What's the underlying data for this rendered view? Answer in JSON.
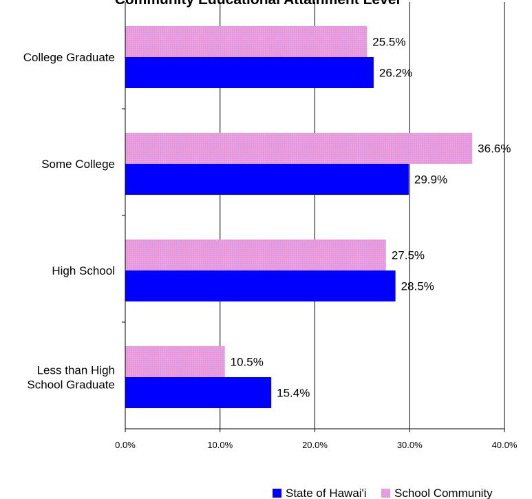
{
  "chart_data": {
    "type": "bar",
    "orientation": "horizontal",
    "title": "Community Educational Attainment Level",
    "categories": [
      "College Graduate",
      "Some College",
      "High School",
      "Less than High School Graduate"
    ],
    "category_lines": [
      [
        "College Graduate"
      ],
      [
        "Some College"
      ],
      [
        "High School"
      ],
      [
        "Less than High",
        "School Graduate"
      ]
    ],
    "series": [
      {
        "name": "School Community",
        "values": [
          25.5,
          36.6,
          27.5,
          10.5
        ],
        "labels": [
          "25.5%",
          "36.6%",
          "27.5%",
          "10.5%"
        ],
        "color": "#cc99ff",
        "pattern_color": "#ff99cc"
      },
      {
        "name": "State of Hawai'i",
        "values": [
          26.2,
          29.9,
          28.5,
          15.4
        ],
        "labels": [
          "26.2%",
          "29.9%",
          "28.5%",
          "15.4%"
        ],
        "color": "#0000ff"
      }
    ],
    "xlim": [
      0,
      40
    ],
    "xticks": [
      0,
      10,
      20,
      30,
      40
    ],
    "xtick_labels": [
      "0.0%",
      "10.0%",
      "20.0%",
      "30.0%",
      "40.0%"
    ],
    "grid": "vertical",
    "legend": {
      "position": "bottom-right",
      "order": [
        "State of Hawai'i",
        "School Community"
      ]
    }
  }
}
